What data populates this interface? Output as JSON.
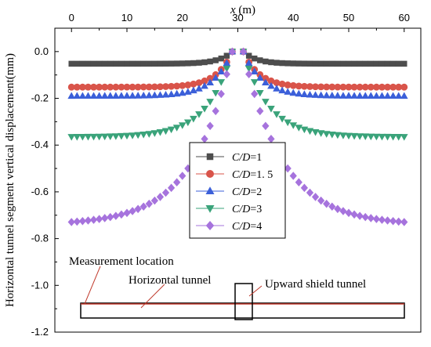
{
  "chart_data": {
    "type": "scatter",
    "xlabel": "x (m)",
    "ylabel": "Horizontal tunnel segment vertical displacement(mm)",
    "xlim": [
      -3,
      63
    ],
    "ylim": [
      -1.2,
      0.1
    ],
    "xticks": [
      0,
      10,
      20,
      30,
      40,
      50,
      60
    ],
    "yticks": [
      0.0,
      -0.2,
      -0.4,
      -0.6,
      -0.8,
      -1.0,
      -1.2
    ],
    "ytick_labels": [
      "0.0",
      "-0.2",
      "-0.4",
      "-0.6",
      "-0.8",
      "-1.0",
      "-1.2"
    ],
    "legend_position": "center",
    "series": [
      {
        "name": "C/D=1",
        "name_italic": "C/D",
        "name_rest": "=1",
        "marker": "square",
        "color": "#4d4d4d",
        "peak": -0.052,
        "decay": 0.42
      },
      {
        "name": "C/D=1.5",
        "name_italic": "C/D",
        "name_rest": "=1. 5",
        "marker": "circle",
        "color": "#d9544a",
        "peak": -0.152,
        "decay": 0.35
      },
      {
        "name": "C/D=2",
        "name_italic": "C/D",
        "name_rest": "=2",
        "marker": "triangle-up",
        "color": "#3b5fd9",
        "peak": -0.19,
        "decay": 0.3
      },
      {
        "name": "C/D=3",
        "name_italic": "C/D",
        "name_rest": "=3",
        "marker": "triangle-down",
        "color": "#3aa37a",
        "peak": -0.365,
        "decay": 0.22
      },
      {
        "name": "C/D=4",
        "name_italic": "C/D",
        "name_rest": "=4",
        "marker": "diamond",
        "color": "#a673dd",
        "peak": -0.742,
        "decay": 0.14
      }
    ]
  },
  "annotations": {
    "measurement": "Measurement location",
    "horizontal_tunnel": "Horizontal tunnel",
    "upward_shield": "Upward shield tunnel"
  },
  "colors": {
    "measurement_line": "#c0392b",
    "arrow": "#c0392b"
  }
}
